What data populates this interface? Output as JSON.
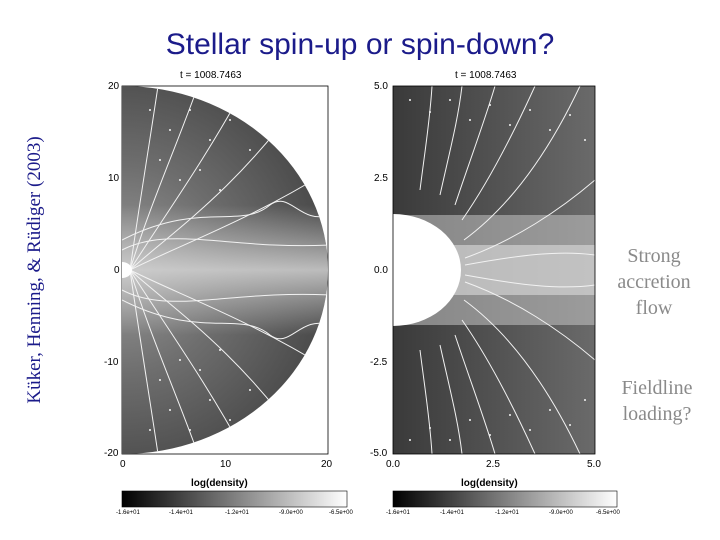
{
  "slide": {
    "title": "Stellar spin-up or spin-down?",
    "credit": "Küker, Henning, & Rüdiger (2003)",
    "note1": [
      "Strong",
      "accretion",
      "flow"
    ],
    "note2": [
      "Fieldline",
      "loading?"
    ]
  },
  "panels": [
    {
      "time_label": "t = 1008.7463",
      "y_ticks": [
        "20",
        "10",
        "0",
        "-10",
        "-20"
      ],
      "x_ticks": [
        "0",
        "10",
        "20"
      ],
      "xlabel": "log(density)",
      "colorbar_ticks": [
        "-1.6e+01",
        "-1.4e+01",
        "-1.2e+01",
        "-9.0e+00",
        "-6.5e+00"
      ]
    },
    {
      "time_label": "t = 1008.7463",
      "y_ticks": [
        "5.0",
        "2.5",
        "0.0",
        "-2.5",
        "-5.0"
      ],
      "x_ticks": [
        "0.0",
        "2.5",
        "5.0"
      ],
      "xlabel": "log(density)",
      "colorbar_ticks": [
        "-1.6e+01",
        "-1.4e+01",
        "-1.2e+01",
        "-9.0e+00",
        "-6.5e+00"
      ]
    }
  ],
  "colors": {
    "title": "#1b1b8a",
    "note": "#8a8a8a"
  }
}
